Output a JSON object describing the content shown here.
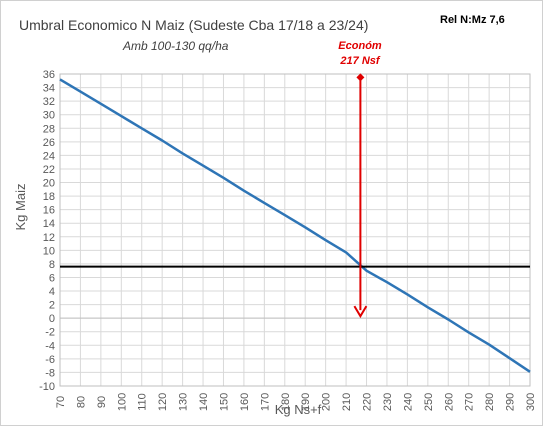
{
  "chart_data": {
    "type": "line",
    "title": "Umbral Economico N Maiz (Sudeste Cba 17/18 a 23/24)",
    "subtitle": "Amb 100-130 qq/ha",
    "ratio_label": "Rel N:Mz 7,6",
    "xlabel": "Kg Ns+f",
    "ylabel": "Kg Maiz",
    "xlim": [
      70,
      300
    ],
    "ylim": [
      -10,
      36
    ],
    "x_ticks": [
      70,
      80,
      90,
      100,
      110,
      120,
      130,
      140,
      150,
      160,
      170,
      180,
      190,
      200,
      210,
      220,
      230,
      240,
      250,
      260,
      270,
      280,
      290,
      300
    ],
    "y_ticks": [
      -10,
      -8,
      -6,
      -4,
      -2,
      0,
      2,
      4,
      6,
      8,
      10,
      12,
      14,
      16,
      18,
      20,
      22,
      24,
      26,
      28,
      30,
      32,
      34,
      36
    ],
    "grid": true,
    "legend": "none",
    "series": [
      {
        "x": [
          70,
          80,
          90,
          100,
          110,
          120,
          130,
          140,
          150,
          160,
          170,
          180,
          190,
          200,
          210,
          220,
          230,
          240,
          250,
          260,
          270,
          280,
          290,
          300
        ],
        "values": [
          35.2,
          33.4,
          31.6,
          29.8,
          28.0,
          26.2,
          24.3,
          22.5,
          20.7,
          18.8,
          17.0,
          15.2,
          13.4,
          11.5,
          9.7,
          7.0,
          5.3,
          3.5,
          1.6,
          -0.2,
          -2.1,
          -3.9,
          -5.9,
          -7.9
        ],
        "color": "#2e75b6"
      }
    ],
    "reference_line": {
      "y": 7.6,
      "color": "#000000"
    },
    "annotation": {
      "lines": [
        "Económ",
        "217 Nsf"
      ],
      "x": 217,
      "y_from": 35.5,
      "y_to": 0.3,
      "color": "#e00000"
    }
  }
}
